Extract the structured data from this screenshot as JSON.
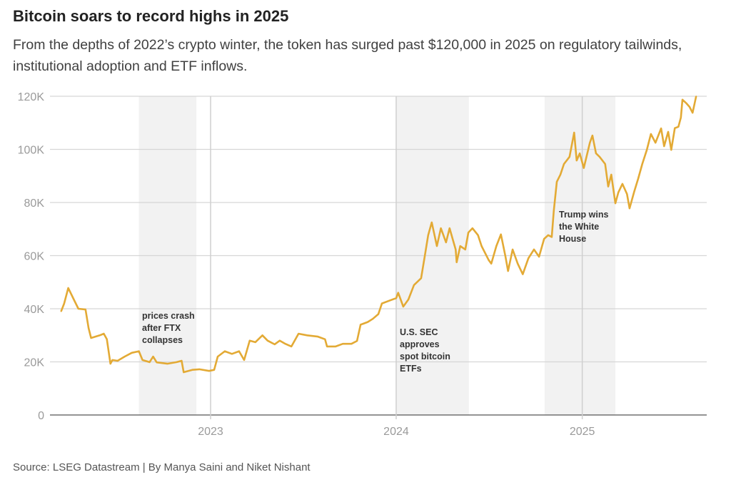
{
  "title": "Bitcoin soars to record highs in 2025",
  "subtitle": "From the depths of 2022’s crypto winter, the token has surged past $120,000 in 2025 on regulatory tailwinds, institutional adoption and ETF inflows.",
  "source": "Source: LSEG Datastream | By Manya Saini and Niket Nishant",
  "chart_data": {
    "type": "line",
    "title": "Bitcoin soars to record highs in 2025",
    "xlabel": "",
    "ylabel": "",
    "ylim": [
      0,
      120000
    ],
    "y_ticks": [
      0,
      20000,
      40000,
      60000,
      80000,
      100000,
      120000
    ],
    "y_tick_labels": [
      "0",
      "20K",
      "40K",
      "60K",
      "80K",
      "100K",
      "120K"
    ],
    "x_ticks": [
      "2023-01-01",
      "2024-01-01",
      "2025-01-01"
    ],
    "x_tick_labels": [
      "2023",
      "2024",
      "2025"
    ],
    "grid": "horizontal",
    "line_color": "#E3AA35",
    "shade_color": "#F2F2F2",
    "shaded_periods": [
      {
        "start": "2022-08-13",
        "end": "2022-12-04",
        "label": [
          "prices crash",
          "after FTX",
          "collapses"
        ]
      },
      {
        "start": "2024-01-01",
        "end": "2024-05-23",
        "label": [
          "U.S. SEC",
          "approves",
          "spot bitcoin",
          "ETFs"
        ]
      },
      {
        "start": "2024-10-19",
        "end": "2025-03-07",
        "label": [
          "Trump wins",
          "the White",
          "House"
        ]
      }
    ],
    "series": [
      {
        "x": [
          "2022-03-13",
          "2022-03-19",
          "2022-03-27",
          "2022-04-07",
          "2022-04-16",
          "2022-04-30",
          "2022-05-06",
          "2022-05-11",
          "2022-05-28",
          "2022-06-05",
          "2022-06-11",
          "2022-06-18",
          "2022-06-22",
          "2022-07-02",
          "2022-07-16",
          "2022-07-30",
          "2022-08-13",
          "2022-08-20",
          "2022-09-03",
          "2022-09-10",
          "2022-09-17",
          "2022-10-08",
          "2022-10-26",
          "2022-11-05",
          "2022-11-09",
          "2022-11-26",
          "2022-12-10",
          "2022-12-29",
          "2023-01-08",
          "2023-01-15",
          "2023-01-29",
          "2023-02-12",
          "2023-02-26",
          "2023-03-08",
          "2023-03-19",
          "2023-03-30",
          "2023-04-13",
          "2023-04-23",
          "2023-05-07",
          "2023-05-17",
          "2023-05-28",
          "2023-06-09",
          "2023-06-23",
          "2023-07-10",
          "2023-07-31",
          "2023-08-14",
          "2023-08-18",
          "2023-09-04",
          "2023-09-18",
          "2023-10-05",
          "2023-10-16",
          "2023-10-23",
          "2023-11-06",
          "2023-11-16",
          "2023-11-27",
          "2023-12-04",
          "2023-12-18",
          "2024-01-01",
          "2024-01-05",
          "2024-01-15",
          "2024-01-25",
          "2024-02-05",
          "2024-02-19",
          "2024-02-26",
          "2024-03-04",
          "2024-03-11",
          "2024-03-21",
          "2024-03-29",
          "2024-04-08",
          "2024-04-15",
          "2024-04-27",
          "2024-04-29",
          "2024-05-06",
          "2024-05-16",
          "2024-05-22",
          "2024-05-30",
          "2024-06-10",
          "2024-06-17",
          "2024-07-01",
          "2024-07-06",
          "2024-07-16",
          "2024-07-25",
          "2024-08-03",
          "2024-08-08",
          "2024-08-17",
          "2024-08-27",
          "2024-09-06",
          "2024-09-17",
          "2024-09-28",
          "2024-10-08",
          "2024-10-18",
          "2024-10-26",
          "2024-11-02",
          "2024-11-06",
          "2024-11-12",
          "2024-11-19",
          "2024-11-26",
          "2024-12-07",
          "2024-12-16",
          "2024-12-21",
          "2024-12-27",
          "2025-01-04",
          "2025-01-16",
          "2025-01-21",
          "2025-01-28",
          "2025-02-04",
          "2025-02-15",
          "2025-02-21",
          "2025-02-27",
          "2025-03-07",
          "2025-03-13",
          "2025-03-21",
          "2025-03-30",
          "2025-04-04",
          "2025-04-13",
          "2025-04-21",
          "2025-04-29",
          "2025-05-08",
          "2025-05-16",
          "2025-05-25",
          "2025-06-05",
          "2025-06-11",
          "2025-06-19",
          "2025-06-25",
          "2025-07-02",
          "2025-07-09",
          "2025-07-14",
          "2025-07-17",
          "2025-07-25",
          "2025-07-31",
          "2025-08-06",
          "2025-08-13"
        ],
        "values": [
          39000,
          42000,
          47800,
          43500,
          40000,
          39700,
          32700,
          29000,
          30000,
          30600,
          28500,
          19300,
          20700,
          20400,
          22000,
          23400,
          24000,
          20700,
          19900,
          22000,
          19800,
          19300,
          19900,
          20400,
          16100,
          17000,
          17200,
          16600,
          17000,
          22000,
          24000,
          23000,
          24000,
          20700,
          28000,
          27400,
          30000,
          28000,
          26600,
          28000,
          26800,
          25800,
          30600,
          30000,
          29500,
          28500,
          25800,
          25800,
          26800,
          26800,
          27900,
          34000,
          35000,
          36200,
          38000,
          42000,
          43000,
          44000,
          46000,
          40800,
          43500,
          48900,
          51500,
          59600,
          67700,
          72500,
          63600,
          70300,
          65000,
          70300,
          62300,
          57500,
          63600,
          62300,
          68700,
          70300,
          67700,
          63600,
          58300,
          57000,
          63600,
          68000,
          59600,
          54200,
          62300,
          57000,
          53000,
          59000,
          62300,
          59600,
          66300,
          67700,
          67000,
          77000,
          87800,
          90500,
          94500,
          97200,
          106300,
          95800,
          98500,
          93000,
          102500,
          105200,
          98500,
          97200,
          94500,
          86000,
          90500,
          79700,
          83800,
          87000,
          83200,
          77800,
          84000,
          89000,
          94500,
          99800,
          105800,
          102500,
          107900,
          101200,
          106600,
          99800,
          108000,
          108500,
          112000,
          118700,
          117300,
          116000,
          113800,
          120000
        ]
      }
    ]
  }
}
